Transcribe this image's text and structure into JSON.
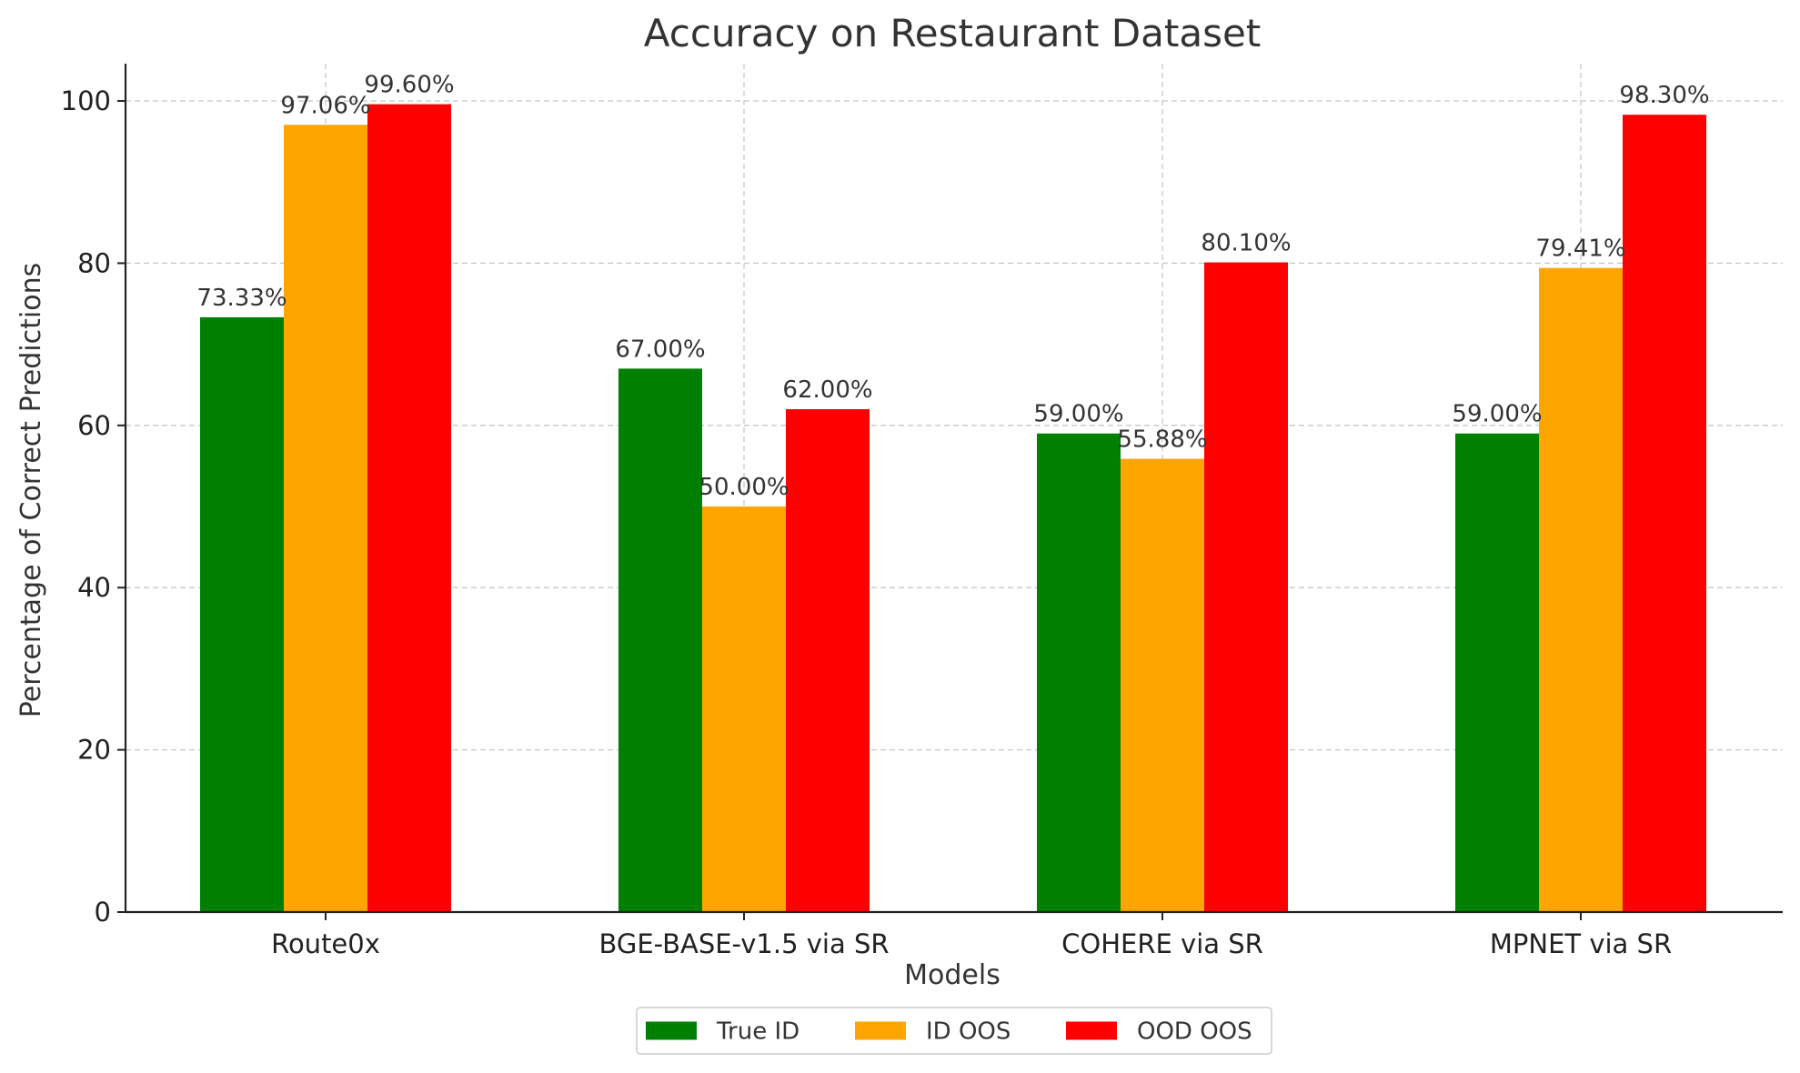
{
  "chart_data": {
    "type": "bar",
    "title": "Accuracy on Restaurant Dataset",
    "xlabel": "Models",
    "ylabel": "Percentage of Correct Predictions",
    "categories": [
      "Route0x",
      "BGE-BASE-v1.5 via SR",
      "COHERE via SR",
      "MPNET via SR"
    ],
    "series": [
      {
        "name": "True ID",
        "color": "#008000",
        "values": [
          73.33,
          67.0,
          59.0,
          59.0
        ],
        "labels": [
          "73.33%",
          "67.00%",
          "59.00%",
          "59.00%"
        ]
      },
      {
        "name": "ID OOS",
        "color": "#FFA500",
        "values": [
          97.06,
          50.0,
          55.88,
          79.41
        ],
        "labels": [
          "97.06%",
          "50.00%",
          "55.88%",
          "79.41%"
        ]
      },
      {
        "name": "OOD OOS",
        "color": "#FF0000",
        "values": [
          99.6,
          62.0,
          80.1,
          98.3
        ],
        "labels": [
          "99.60%",
          "62.00%",
          "80.10%",
          "98.30%"
        ]
      }
    ],
    "ylim": [
      0,
      104.6
    ],
    "yticks": [
      0,
      20,
      40,
      60,
      80,
      100
    ],
    "grid": true,
    "legend_position": "bottom-center"
  }
}
